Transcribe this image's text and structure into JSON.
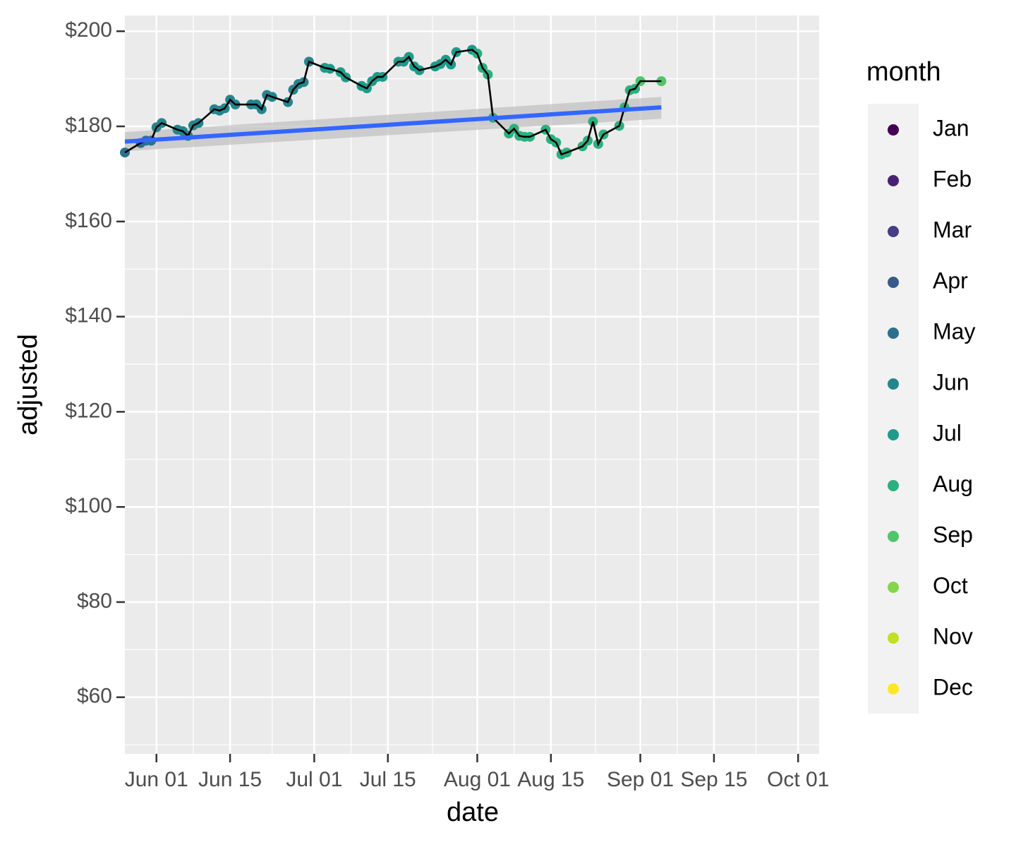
{
  "chart_data": {
    "type": "scatter",
    "x_label": "date",
    "y_label": "adjusted",
    "legend_title": "month",
    "xlim": [
      "May 26",
      "Oct 05"
    ],
    "ylim": [
      48.1,
      203.3
    ],
    "xticks": [
      "Jun 01",
      "Jun 15",
      "Jul 01",
      "Jul 15",
      "Aug 01",
      "Aug 15",
      "Sep 01",
      "Sep 15",
      "Oct 01"
    ],
    "yticks": [
      {
        "value": 60,
        "label": "$60"
      },
      {
        "value": 80,
        "label": "$80"
      },
      {
        "value": 100,
        "label": "$100"
      },
      {
        "value": 120,
        "label": "$120"
      },
      {
        "value": 140,
        "label": "$140"
      },
      {
        "value": 160,
        "label": "$160"
      },
      {
        "value": 180,
        "label": "$180"
      },
      {
        "value": 200,
        "label": "$200"
      }
    ],
    "grid": true,
    "line_color": "#000000",
    "series": [
      {
        "name": "Jan",
        "color": "#440154",
        "x": [],
        "values": []
      },
      {
        "name": "Feb",
        "color": "#482173",
        "x": [],
        "values": []
      },
      {
        "name": "Mar",
        "color": "#433E85",
        "x": [],
        "values": []
      },
      {
        "name": "Apr",
        "color": "#38598C",
        "x": [],
        "values": []
      },
      {
        "name": "May",
        "color": "#2D708E",
        "x": [
          "May 26",
          "May 29",
          "May 30",
          "May 31"
        ],
        "values": [
          174.5,
          176.5,
          177.0,
          177.0
        ]
      },
      {
        "name": "Jun",
        "color": "#25858E",
        "x": [
          "Jun 01",
          "Jun 02",
          "Jun 05",
          "Jun 06",
          "Jun 07",
          "Jun 08",
          "Jun 09",
          "Jun 12",
          "Jun 13",
          "Jun 14",
          "Jun 15",
          "Jun 16",
          "Jun 19",
          "Jun 20",
          "Jun 21",
          "Jun 22",
          "Jun 23",
          "Jun 26",
          "Jun 27",
          "Jun 28",
          "Jun 29",
          "Jun 30"
        ],
        "values": [
          179.8,
          180.7,
          179.3,
          179.0,
          178.0,
          180.2,
          180.7,
          183.6,
          183.3,
          183.8,
          185.6,
          184.6,
          184.6,
          184.6,
          183.6,
          186.6,
          186.2,
          185.1,
          187.7,
          188.9,
          189.3,
          193.6
        ]
      },
      {
        "name": "Jul",
        "color": "#1E9B8A",
        "x": [
          "Jul 03",
          "Jul 04",
          "Jul 06",
          "Jul 07",
          "Jul 10",
          "Jul 11",
          "Jul 12",
          "Jul 13",
          "Jul 14",
          "Jul 17",
          "Jul 18",
          "Jul 19",
          "Jul 20",
          "Jul 21",
          "Jul 24",
          "Jul 25",
          "Jul 26",
          "Jul 27",
          "Jul 28",
          "Jul 31"
        ],
        "values": [
          192.3,
          192.1,
          191.4,
          190.3,
          188.5,
          188.0,
          189.5,
          190.4,
          190.4,
          193.6,
          193.6,
          194.6,
          192.6,
          191.8,
          192.6,
          193.1,
          194.0,
          193.0,
          195.6,
          196.1
        ]
      },
      {
        "name": "Aug",
        "color": "#2BB07F",
        "x": [
          "Aug 01",
          "Aug 02",
          "Aug 03",
          "Aug 04",
          "Aug 07",
          "Aug 08",
          "Aug 09",
          "Aug 10",
          "Aug 11",
          "Aug 14",
          "Aug 15",
          "Aug 16",
          "Aug 17",
          "Aug 18",
          "Aug 21",
          "Aug 22",
          "Aug 23",
          "Aug 24",
          "Aug 25",
          "Aug 28",
          "Aug 29",
          "Aug 30",
          "Aug 31"
        ],
        "values": [
          195.3,
          192.3,
          190.9,
          181.8,
          178.5,
          179.5,
          178.0,
          177.8,
          177.8,
          179.3,
          177.3,
          176.6,
          174.1,
          174.5,
          175.8,
          177.0,
          181.0,
          176.3,
          178.3,
          180.1,
          184.0,
          187.6,
          187.9
        ]
      },
      {
        "name": "Sep",
        "color": "#51C56A",
        "x": [
          "Sep 01",
          "Sep 05"
        ],
        "values": [
          189.5,
          189.5
        ]
      },
      {
        "name": "Oct",
        "color": "#85D54A",
        "x": [],
        "values": []
      },
      {
        "name": "Nov",
        "color": "#C2DF23",
        "x": [],
        "values": []
      },
      {
        "name": "Dec",
        "color": "#FDE725",
        "x": [],
        "values": []
      }
    ],
    "trend": {
      "color": "#3366FF",
      "band_color": "#BFBFBF",
      "x": [
        "May 26",
        "Sep 05"
      ],
      "values": [
        176.8,
        184.0
      ],
      "lower": [
        174.8,
        181.6
      ],
      "upper": [
        178.8,
        186.2
      ]
    }
  }
}
